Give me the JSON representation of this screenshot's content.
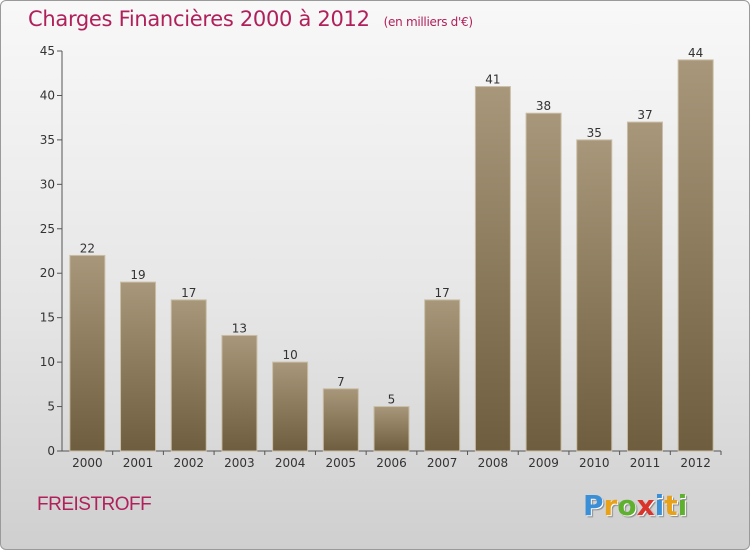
{
  "chart_data": {
    "type": "bar",
    "title": "Charges Financières 2000 à 2012",
    "subtitle": "(en milliers d'€)",
    "categories": [
      "2000",
      "2001",
      "2002",
      "2003",
      "2004",
      "2005",
      "2006",
      "2007",
      "2008",
      "2009",
      "2010",
      "2011",
      "2012"
    ],
    "values": [
      22,
      19,
      17,
      13,
      10,
      7,
      5,
      17,
      41,
      38,
      35,
      37,
      44
    ],
    "ylim": [
      0,
      45
    ],
    "yticks": [
      0,
      5,
      10,
      15,
      20,
      25,
      30,
      35,
      40,
      45
    ],
    "grid": false,
    "colors": {
      "bar_top": "#a8977a",
      "bar_bottom": "#6e5d3e",
      "title": "#b0205a"
    }
  },
  "town": "FREISTROFF",
  "logo": {
    "text": "Proxiti",
    "letters": [
      {
        "c": "P",
        "color": "#3a8fd6"
      },
      {
        "c": "r",
        "color": "#e8a21a"
      },
      {
        "c": "o",
        "color": "#5fb02e"
      },
      {
        "c": "x",
        "color": "#d9342b"
      },
      {
        "c": "i",
        "color": "#3a8fd6"
      },
      {
        "c": "t",
        "color": "#e8a21a"
      },
      {
        "c": "i",
        "color": "#5fb02e"
      }
    ]
  }
}
